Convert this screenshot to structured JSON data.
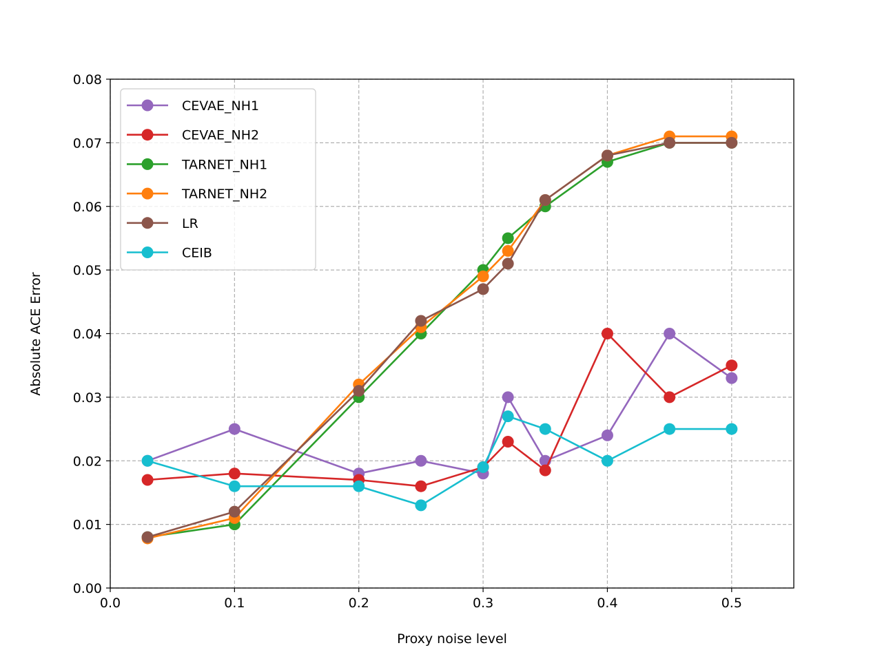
{
  "chart_data": {
    "type": "line",
    "title": "",
    "xlabel": "Proxy noise level",
    "ylabel": "Absolute ACE Error",
    "xlim": [
      0.0,
      0.55
    ],
    "ylim": [
      0.0,
      0.08
    ],
    "xticks": [
      0.0,
      0.1,
      0.2,
      0.3,
      0.4,
      0.5
    ],
    "xtick_labels": [
      "0.0",
      "0.1",
      "0.2",
      "0.3",
      "0.4",
      "0.5"
    ],
    "yticks": [
      0.0,
      0.01,
      0.02,
      0.03,
      0.04,
      0.05,
      0.06,
      0.07,
      0.08
    ],
    "ytick_labels": [
      "0.00",
      "0.01",
      "0.02",
      "0.03",
      "0.04",
      "0.05",
      "0.06",
      "0.07",
      "0.08"
    ],
    "grid": true,
    "legend_position": "top-left",
    "x": [
      0.03,
      0.1,
      0.2,
      0.25,
      0.3,
      0.32,
      0.35,
      0.4,
      0.45,
      0.5
    ],
    "series": [
      {
        "name": "CEVAE_NH1",
        "color": "#9467bd",
        "values": [
          0.02,
          0.025,
          0.018,
          0.02,
          0.018,
          0.03,
          0.02,
          0.024,
          0.04,
          0.033
        ]
      },
      {
        "name": "CEVAE_NH2",
        "color": "#d62728",
        "values": [
          0.017,
          0.018,
          0.017,
          0.016,
          0.019,
          0.023,
          0.0185,
          0.04,
          0.03,
          0.035
        ]
      },
      {
        "name": "TARNET_NH1",
        "color": "#2ca02c",
        "values": [
          0.008,
          0.01,
          0.03,
          0.04,
          0.05,
          0.055,
          0.06,
          0.067,
          0.07,
          0.07
        ]
      },
      {
        "name": "TARNET_NH2",
        "color": "#ff7f0e",
        "values": [
          0.0078,
          0.011,
          0.032,
          0.041,
          0.049,
          0.053,
          0.061,
          0.068,
          0.071,
          0.071
        ]
      },
      {
        "name": "LR",
        "color": "#8c564b",
        "values": [
          0.008,
          0.012,
          0.031,
          0.042,
          0.047,
          0.051,
          0.061,
          0.068,
          0.07,
          0.07
        ]
      },
      {
        "name": "CEIB",
        "color": "#17becf",
        "values": [
          0.02,
          0.016,
          0.016,
          0.013,
          0.019,
          0.027,
          0.025,
          0.02,
          0.025,
          0.025
        ]
      }
    ]
  }
}
